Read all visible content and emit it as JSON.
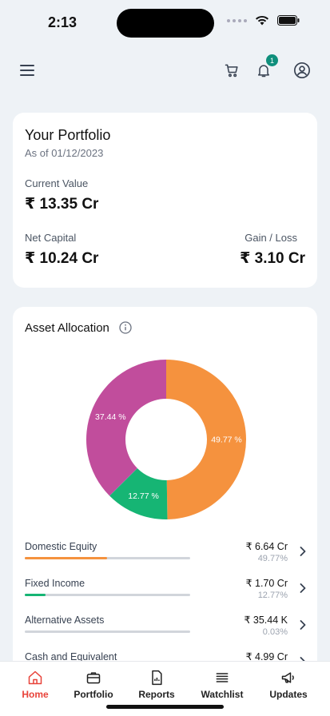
{
  "status_bar": {
    "time": "2:13"
  },
  "header": {
    "notification_count": "1"
  },
  "portfolio": {
    "title": "Your Portfolio",
    "as_of": "As of 01/12/2023",
    "current_value_label": "Current Value",
    "current_value": "₹ 13.35 Cr",
    "net_capital_label": "Net Capital",
    "net_capital": "₹ 10.24 Cr",
    "gain_loss_label": "Gain / Loss",
    "gain_loss": "₹ 3.10 Cr"
  },
  "allocation": {
    "title": "Asset Allocation",
    "chart_data": {
      "type": "pie",
      "categories": [
        "Domestic Equity",
        "Fixed Income",
        "Alternative Assets",
        "Cash and Equivalent"
      ],
      "values": [
        49.77,
        12.77,
        0.03,
        37.44
      ],
      "labels": [
        "49.77 %",
        "12.77 %",
        "",
        "37.44 %"
      ],
      "colors": [
        "#f5923e",
        "#16b574",
        "#5b7fd6",
        "#c14d9c"
      ]
    },
    "items": [
      {
        "name": "Domestic Equity",
        "amount": "₹ 6.64 Cr",
        "percent": "49.77%",
        "fill": 0.4977,
        "color": "#f5923e"
      },
      {
        "name": "Fixed Income",
        "amount": "₹ 1.70 Cr",
        "percent": "12.77%",
        "fill": 0.1277,
        "color": "#16b574"
      },
      {
        "name": "Alternative Assets",
        "amount": "₹ 35.44 K",
        "percent": "0.03%",
        "fill": 0.0003,
        "color": "#5b7fd6"
      },
      {
        "name": "Cash and Equivalent",
        "amount": "₹ 4.99 Cr",
        "percent": "",
        "fill": 0.3744,
        "color": "#c14d9c"
      }
    ]
  },
  "nav": {
    "items": [
      {
        "label": "Home",
        "icon": "home-icon"
      },
      {
        "label": "Portfolio",
        "icon": "briefcase-icon"
      },
      {
        "label": "Reports",
        "icon": "report-icon"
      },
      {
        "label": "Watchlist",
        "icon": "list-icon"
      },
      {
        "label": "Updates",
        "icon": "megaphone-icon"
      }
    ]
  }
}
